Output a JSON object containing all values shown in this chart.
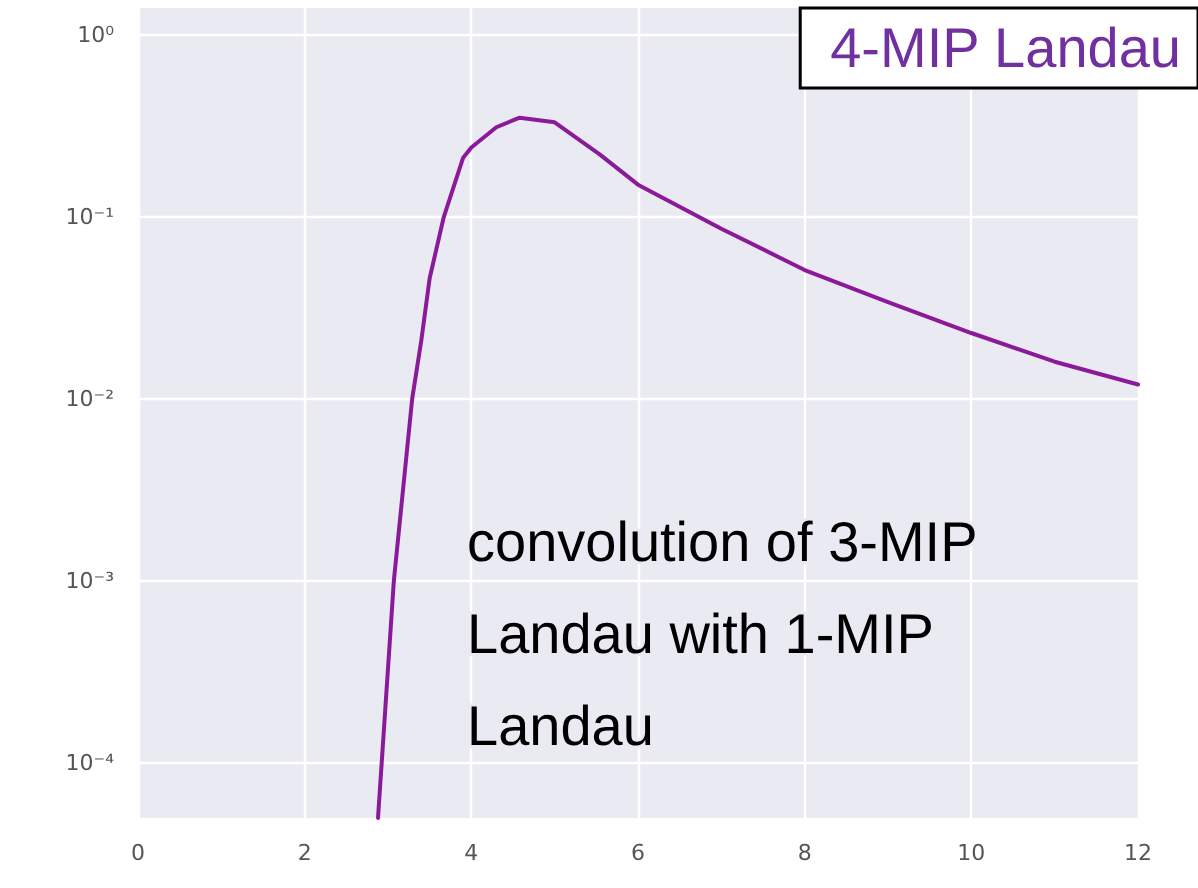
{
  "chart_data": {
    "type": "line",
    "log": "y",
    "grid": true,
    "legend": "top right",
    "marker": "none",
    "line_style": "solid",
    "series": [
      {
        "name": "4-MIP Landau",
        "color": "#8b1a9a",
        "x": [
          2.88,
          3.07,
          3.29,
          3.4,
          3.5,
          3.67,
          3.9,
          4.0,
          4.3,
          4.58,
          5.0,
          5.54,
          6.0,
          7.0,
          8.0,
          9.0,
          10.0,
          11.0,
          12.0
        ],
        "values": [
          5e-05,
          0.001,
          0.01,
          0.021,
          0.046,
          0.1,
          0.21,
          0.24,
          0.31,
          0.35,
          0.33,
          0.22,
          0.15,
          0.086,
          0.051,
          0.034,
          0.023,
          0.016,
          0.012
        ]
      }
    ],
    "xlim": [
      0,
      12
    ],
    "xticks": [
      0,
      2,
      4,
      6,
      8,
      10,
      12
    ],
    "ylim": [
      5e-05,
      1.4
    ],
    "yticks": [
      {
        "value": 0.0001,
        "label": "10⁻⁴"
      },
      {
        "value": 0.001,
        "label": "10⁻³"
      },
      {
        "value": 0.01,
        "label": "10⁻²"
      },
      {
        "value": 0.1,
        "label": "10⁻¹"
      },
      {
        "value": 1,
        "label": "10⁰"
      }
    ],
    "annotations": [
      "convolution of 3-MIP Landau with 1-MIP Landau"
    ]
  }
}
